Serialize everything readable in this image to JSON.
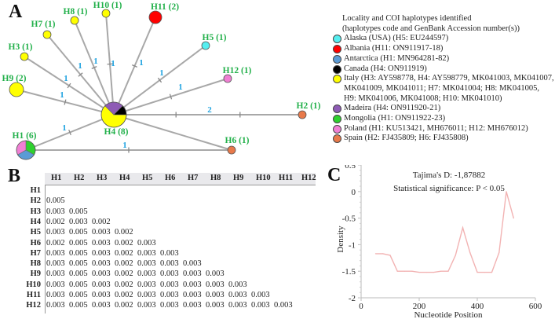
{
  "panels": {
    "a": "A",
    "b": "B",
    "c": "C"
  },
  "network": {
    "nodes": [
      {
        "id": "H4",
        "label": "H4 (8)",
        "slices": [
          {
            "country": "Italy",
            "count": 5,
            "color": "#ffff00"
          },
          {
            "country": "Madeira",
            "count": 2,
            "color": "#8e5bb5"
          },
          {
            "country": "Canada",
            "count": 1,
            "color": "#000000"
          }
        ]
      },
      {
        "id": "H1",
        "label": "H1 (6)",
        "slices": [
          {
            "country": "Mongolia",
            "count": 2,
            "color": "#2ed12e"
          },
          {
            "country": "Antarctica",
            "count": 2,
            "color": "#5b9bd5"
          },
          {
            "country": "Poland",
            "count": 2,
            "color": "#f07fd4"
          }
        ]
      },
      {
        "id": "H9",
        "label": "H9 (2)",
        "slices": [
          {
            "country": "Italy",
            "count": 2,
            "color": "#ffff00"
          }
        ]
      },
      {
        "id": "H3",
        "label": "H3 (1)",
        "slices": [
          {
            "country": "Italy",
            "count": 1,
            "color": "#ffff00"
          }
        ]
      },
      {
        "id": "H7",
        "label": "H7 (1)",
        "slices": [
          {
            "country": "Italy",
            "count": 1,
            "color": "#ffff00"
          }
        ]
      },
      {
        "id": "H8",
        "label": "H8 (1)",
        "slices": [
          {
            "country": "Italy",
            "count": 1,
            "color": "#ffff00"
          }
        ]
      },
      {
        "id": "H10",
        "label": "H10 (1)",
        "slices": [
          {
            "country": "Italy",
            "count": 1,
            "color": "#ffff00"
          }
        ]
      },
      {
        "id": "H11",
        "label": "H11 (2)",
        "slices": [
          {
            "country": "Albania",
            "count": 2,
            "color": "#ff0000"
          }
        ]
      },
      {
        "id": "H5",
        "label": "H5 (1)",
        "slices": [
          {
            "country": "Alaska (USA)",
            "count": 1,
            "color": "#55eef0"
          }
        ]
      },
      {
        "id": "H12",
        "label": "H12 (1)",
        "slices": [
          {
            "country": "Poland",
            "count": 1,
            "color": "#f07fd4"
          }
        ]
      },
      {
        "id": "H2",
        "label": "H2 (1)",
        "slices": [
          {
            "country": "Spain",
            "count": 1,
            "color": "#e8794a"
          }
        ]
      },
      {
        "id": "H6",
        "label": "H6 (1)",
        "slices": [
          {
            "country": "Spain",
            "count": 1,
            "color": "#e8794a"
          }
        ]
      }
    ],
    "edges": [
      {
        "from": "H4",
        "to": "H9",
        "mutations": "1"
      },
      {
        "from": "H4",
        "to": "H3",
        "mutations": "1"
      },
      {
        "from": "H4",
        "to": "H7",
        "mutations": "1"
      },
      {
        "from": "H4",
        "to": "H8",
        "mutations": "1"
      },
      {
        "from": "H4",
        "to": "H10",
        "mutations": "1"
      },
      {
        "from": "H4",
        "to": "H11",
        "mutations": "1"
      },
      {
        "from": "H4",
        "to": "H5",
        "mutations": "1"
      },
      {
        "from": "H4",
        "to": "H12",
        "mutations": "1"
      },
      {
        "from": "H4",
        "to": "H2",
        "mutations": "2"
      },
      {
        "from": "H4",
        "to": "H1",
        "mutations": "1"
      },
      {
        "from": "H4",
        "to": "H6",
        "mutations": ""
      },
      {
        "from": "H1",
        "to": "H6",
        "mutations": "1"
      }
    ],
    "label_color": "#22b04a",
    "mutation_color": "#1fa3e0"
  },
  "legend": {
    "title_lines": [
      "Locality and COI haplotypes identified",
      "(haplotypes code and GenBank Accession number(s))"
    ],
    "entries": [
      {
        "color": "#55eef0",
        "lines": [
          "Alaska (USA) (H5: EU244597)"
        ]
      },
      {
        "color": "#ff0000",
        "lines": [
          "Albania (H11: ON911917-18)"
        ]
      },
      {
        "color": "#5b9bd5",
        "lines": [
          "Antarctica (H1: MN964281-82)"
        ]
      },
      {
        "color": "#000000",
        "lines": [
          "Canada (H4: ON911919)"
        ]
      },
      {
        "color": "#ffff00",
        "lines": [
          "Italy (H3: AY598778, H4: AY598779, MK041003, MK041007,",
          "MK041009, MK041011; H7: MK041004; H8: MK041005,",
          "H9: MK041006, MK041008; H10: MK041010)"
        ]
      },
      {
        "color": "#8e5bb5",
        "lines": [
          "Madeira (H4: ON911920-21)"
        ]
      },
      {
        "color": "#2ed12e",
        "lines": [
          "Mongolia (H1: ON911922-23)"
        ]
      },
      {
        "color": "#f07fd4",
        "lines": [
          "Poland (H1: KU513421, MH676011; H12: MH676012)"
        ]
      },
      {
        "color": "#e8794a",
        "lines": [
          "Spain (H2: FJ435809; H6: FJ435808)"
        ]
      }
    ]
  },
  "distance_table": {
    "headers": [
      "H1",
      "H2",
      "H3",
      "H4",
      "H5",
      "H6",
      "H7",
      "H8",
      "H9",
      "H10",
      "H11",
      "H12"
    ],
    "rows": [
      {
        "label": "H1",
        "values": []
      },
      {
        "label": "H2",
        "values": [
          "0.005"
        ]
      },
      {
        "label": "H3",
        "values": [
          "0.003",
          "0.005"
        ]
      },
      {
        "label": "H4",
        "values": [
          "0.002",
          "0.003",
          "0.002"
        ]
      },
      {
        "label": "H5",
        "values": [
          "0.003",
          "0.005",
          "0.003",
          "0.002"
        ]
      },
      {
        "label": "H6",
        "values": [
          "0.002",
          "0.005",
          "0.003",
          "0.002",
          "0.003"
        ]
      },
      {
        "label": "H7",
        "values": [
          "0.003",
          "0.005",
          "0.003",
          "0.002",
          "0.003",
          "0.003"
        ]
      },
      {
        "label": "H8",
        "values": [
          "0.003",
          "0.005",
          "0.003",
          "0.002",
          "0.003",
          "0.003",
          "0.003"
        ]
      },
      {
        "label": "H9",
        "values": [
          "0.003",
          "0.005",
          "0.003",
          "0.002",
          "0.003",
          "0.003",
          "0.003",
          "0.003"
        ]
      },
      {
        "label": "H10",
        "values": [
          "0.003",
          "0.005",
          "0.003",
          "0.002",
          "0.003",
          "0.003",
          "0.003",
          "0.003",
          "0.003"
        ]
      },
      {
        "label": "H11",
        "values": [
          "0.003",
          "0.005",
          "0.003",
          "0.002",
          "0.003",
          "0.003",
          "0.003",
          "0.003",
          "0.003",
          "0.003"
        ]
      },
      {
        "label": "H12",
        "values": [
          "0.003",
          "0.005",
          "0.003",
          "0.002",
          "0.003",
          "0.003",
          "0.003",
          "0.003",
          "0.003",
          "0.003",
          "0.003"
        ]
      }
    ]
  },
  "chart_data": {
    "type": "line",
    "annotations": [
      "Tajima's D: -1,87882",
      "Statistical significance: P < 0.05"
    ],
    "xlabel": "Nucleotide Position",
    "ylabel": "Density",
    "xlim": [
      0,
      600
    ],
    "ylim": [
      -2,
      0.5
    ],
    "xticks": [
      0,
      200,
      400,
      600
    ],
    "yticks": [
      -2,
      -1.5,
      -1,
      -0.5,
      0,
      0.5
    ],
    "ytick_labels": [
      "-2",
      "-1.5",
      "-1",
      "-0.5",
      "0",
      "0.5"
    ],
    "series": [
      {
        "name": "Tajima's D",
        "color": "#f2b3b3",
        "x": [
          50,
          75,
          100,
          125,
          150,
          175,
          200,
          225,
          250,
          275,
          300,
          325,
          350,
          375,
          400,
          425,
          450,
          475,
          500,
          525
        ],
        "y": [
          -1.17,
          -1.17,
          -1.2,
          -1.5,
          -1.5,
          -1.5,
          -1.52,
          -1.52,
          -1.52,
          -1.5,
          -1.5,
          -1.2,
          -0.68,
          -1.15,
          -1.52,
          -1.52,
          -1.52,
          -1.15,
          0,
          -0.5
        ]
      }
    ],
    "grid": false
  }
}
